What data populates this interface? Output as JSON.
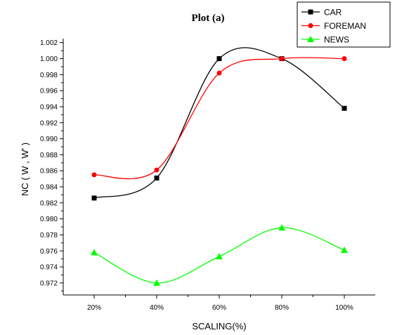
{
  "chart_data": {
    "type": "line",
    "title": "Plot (a)",
    "xlabel": "SCALING(%)",
    "ylabel": "NC ( W , W' )",
    "categories": [
      "20%",
      "40%",
      "60%",
      "80%",
      "100%"
    ],
    "ylim": [
      0.9705,
      1.0025
    ],
    "yticks": [
      "0.972",
      "0.974",
      "0.976",
      "0.978",
      "0.980",
      "0.982",
      "0.984",
      "0.986",
      "0.988",
      "0.990",
      "0.992",
      "0.994",
      "0.996",
      "0.998",
      "1.000",
      "1.002"
    ],
    "grid": false,
    "legend_position": "top-right",
    "series": [
      {
        "name": "CAR",
        "color": "#000000",
        "marker": "square",
        "values": [
          0.9826,
          0.9851,
          1.0,
          1.0,
          0.9938
        ]
      },
      {
        "name": "FOREMAN",
        "color": "#ff0000",
        "marker": "circle",
        "values": [
          0.9855,
          0.9861,
          0.9982,
          1.0,
          1.0
        ]
      },
      {
        "name": "NEWS",
        "color": "#00ff00",
        "marker": "triangle",
        "values": [
          0.9758,
          0.972,
          0.9753,
          0.9789,
          0.9761
        ]
      }
    ]
  }
}
